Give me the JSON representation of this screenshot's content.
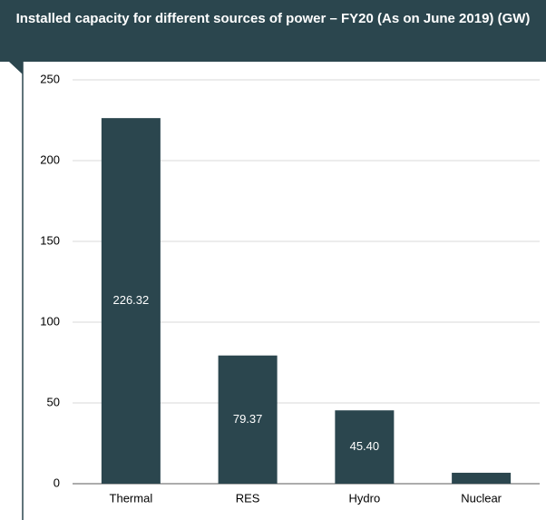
{
  "chart_data": {
    "type": "bar",
    "title": "Installed capacity for different sources of power – FY20 (As on June 2019) (GW)",
    "categories": [
      "Thermal",
      "RES",
      "Hydro",
      "Nuclear"
    ],
    "values": [
      226.32,
      79.37,
      45.4,
      6.78
    ],
    "value_labels": [
      "226.32",
      "79.37",
      "45.40",
      null
    ],
    "color": "#2b464e",
    "ylim": [
      0,
      250
    ],
    "yticks": [
      0,
      50,
      100,
      150,
      200,
      250
    ],
    "grid": true
  }
}
